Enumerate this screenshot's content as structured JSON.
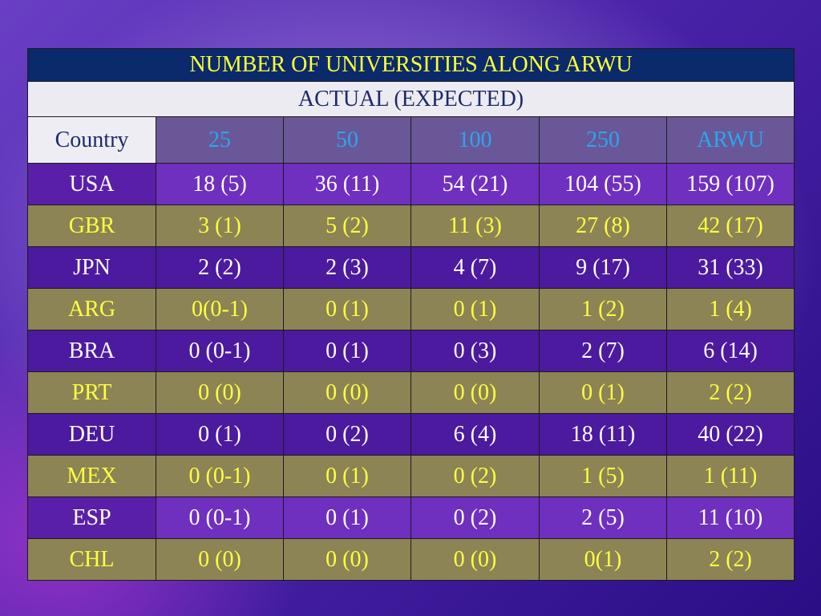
{
  "title": "NUMBER OF UNIVERSITIES ALONG ARWU",
  "subtitle": "ACTUAL (EXPECTED)",
  "columns": [
    "Country",
    "25",
    "50",
    "100",
    "250",
    "ARWU"
  ],
  "rows": [
    {
      "country": "USA",
      "values": [
        "18 (5)",
        "36 (11)",
        "54 (21)",
        "104 (55)",
        "159 (107)"
      ]
    },
    {
      "country": "GBR",
      "values": [
        "3 (1)",
        "5 (2)",
        "11 (3)",
        "27 (8)",
        "42 (17)"
      ]
    },
    {
      "country": "JPN",
      "values": [
        "2 (2)",
        "2 (3)",
        "4 (7)",
        "9 (17)",
        "31 (33)"
      ]
    },
    {
      "country": "ARG",
      "values": [
        "0(0-1)",
        "0 (1)",
        "0 (1)",
        "1 (2)",
        "1 (4)"
      ]
    },
    {
      "country": "BRA",
      "values": [
        "0 (0-1)",
        "0 (1)",
        "0 (3)",
        "2 (7)",
        "6 (14)"
      ]
    },
    {
      "country": "PRT",
      "values": [
        "0 (0)",
        "0 (0)",
        "0 (0)",
        "0 (1)",
        "2 (2)"
      ]
    },
    {
      "country": "DEU",
      "values": [
        "0 (1)",
        "0 (2)",
        "6 (4)",
        "18 (11)",
        "40 (22)"
      ]
    },
    {
      "country": "MEX",
      "values": [
        "0 (0-1)",
        "0 (1)",
        "0 (2)",
        "1 (5)",
        "1 (11)"
      ]
    },
    {
      "country": "ESP",
      "values": [
        "0 (0-1)",
        "0 (1)",
        "0 (2)",
        "2 (5)",
        "11 (10)"
      ]
    },
    {
      "country": "CHL",
      "values": [
        "0 (0)",
        "0 (0)",
        "0 (0)",
        "0(1)",
        "2 (2)"
      ]
    }
  ],
  "colors": {
    "title_bg": "#0b2a6b",
    "title_text": "#ffff33",
    "header_text": "#2aa6ef",
    "row_purple": "#6f2fbf",
    "row_dark": "#4b1a9e",
    "row_olive": "#8c8455",
    "olive_text": "#ffff40"
  }
}
